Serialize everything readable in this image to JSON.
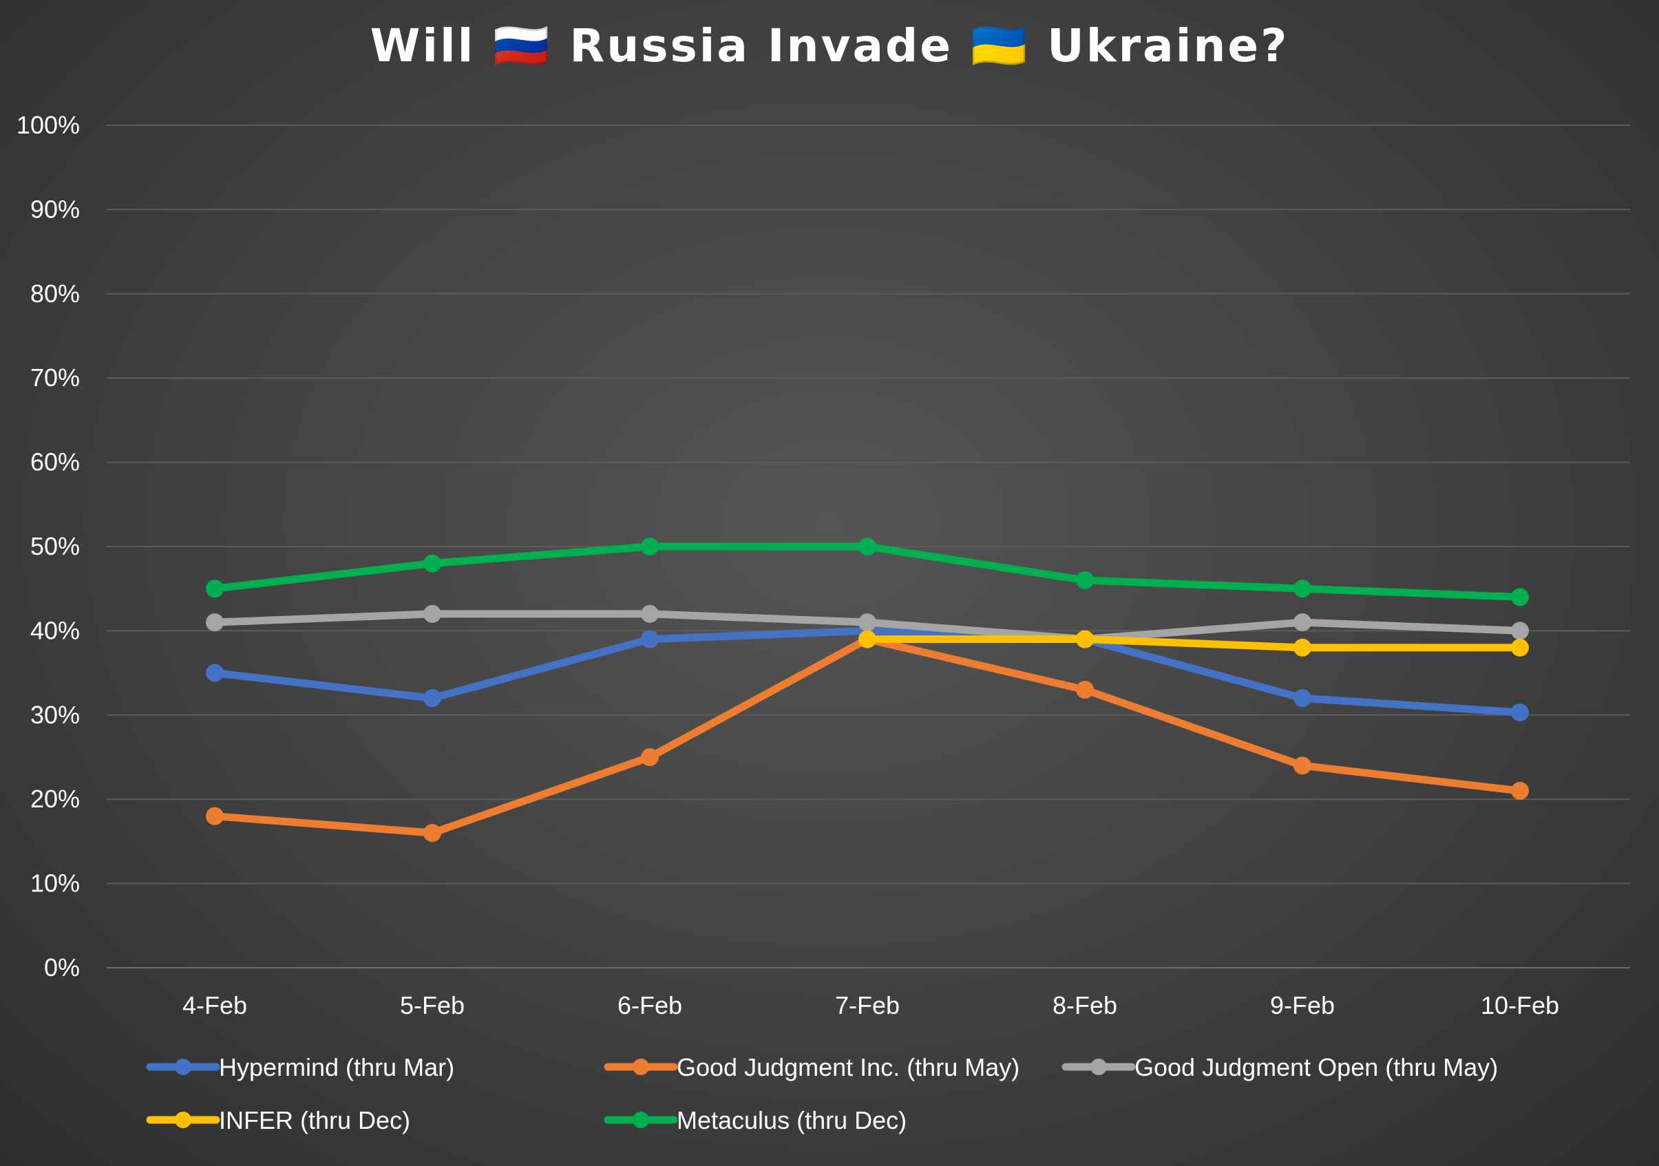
{
  "chart_data": {
    "type": "line",
    "title": "Will 🇷🇺 Russia Invade 🇺🇦 Ukraine?",
    "xlabel": "",
    "ylabel": "",
    "categories": [
      "4-Feb",
      "5-Feb",
      "6-Feb",
      "7-Feb",
      "8-Feb",
      "9-Feb",
      "10-Feb"
    ],
    "ylim": [
      0,
      100
    ],
    "yticks": [
      "0%",
      "10%",
      "20%",
      "30%",
      "40%",
      "50%",
      "60%",
      "70%",
      "80%",
      "90%",
      "100%"
    ],
    "grid": true,
    "legend_position": "bottom",
    "series": [
      {
        "name": "Hypermind (thru Mar)",
        "color": "#4472C4",
        "values": [
          35,
          32,
          39,
          40,
          39,
          32,
          30.3
        ]
      },
      {
        "name": "Good Judgment Inc. (thru May)",
        "color": "#ED7D31",
        "values": [
          18,
          16,
          25,
          39,
          33,
          24,
          21
        ]
      },
      {
        "name": "Good Judgment Open (thru May)",
        "color": "#A5A5A5",
        "values": [
          41,
          42,
          42,
          41,
          39,
          41,
          40
        ]
      },
      {
        "name": "INFER (thru Dec)",
        "color": "#FFC000",
        "values": [
          null,
          null,
          null,
          39,
          39,
          38,
          38
        ]
      },
      {
        "name": "Metaculus (thru Dec)",
        "color": "#00B050",
        "values": [
          45,
          48,
          50,
          50,
          46,
          45,
          44
        ]
      }
    ]
  }
}
